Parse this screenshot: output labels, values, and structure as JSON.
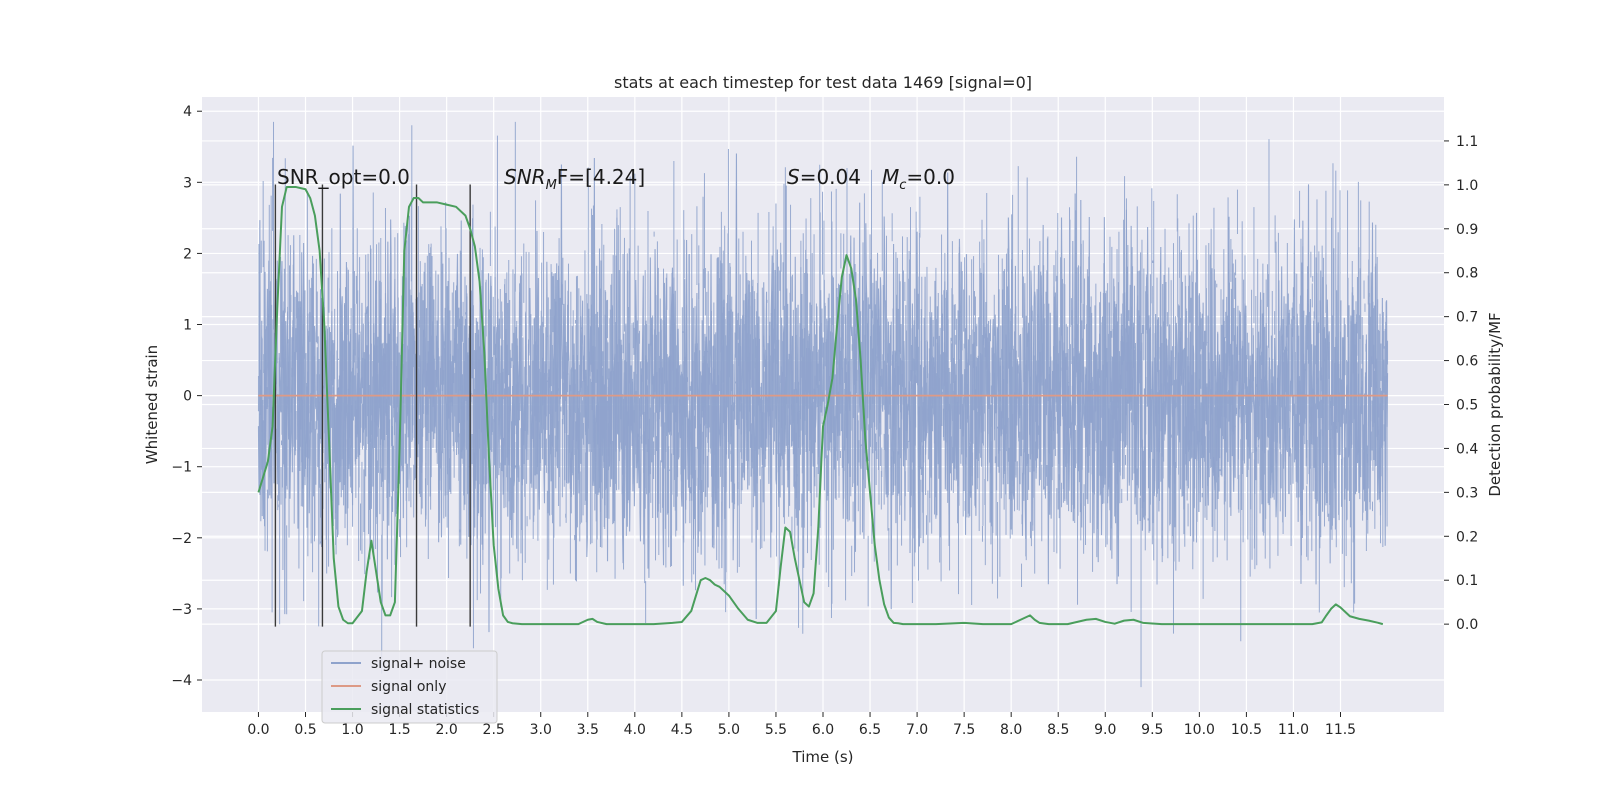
{
  "chart_data": {
    "type": "line",
    "title": "stats at each timestep for test data 1469 [signal=0]",
    "xlabel": "Time (s)",
    "ylabel": "Whitened strain",
    "ylabel_right": "Detection probability/MF",
    "xlim": [
      -0.6,
      12.6
    ],
    "ylim": [
      -4.45,
      4.2
    ],
    "ylim_right": [
      -0.2,
      1.2
    ],
    "xticks": [
      "0.0",
      "0.5",
      "1.0",
      "1.5",
      "2.0",
      "2.5",
      "3.0",
      "3.5",
      "4.0",
      "4.5",
      "5.0",
      "5.5",
      "6.0",
      "6.5",
      "7.0",
      "7.5",
      "8.0",
      "8.5",
      "9.0",
      "9.5",
      "10.0",
      "10.5",
      "11.0",
      "11.5"
    ],
    "yticks_left": [
      "−4",
      "−3",
      "−2",
      "−1",
      "0",
      "1",
      "2",
      "3",
      "4"
    ],
    "yticks_right": [
      "0.0",
      "0.1",
      "0.2",
      "0.3",
      "0.4",
      "0.5",
      "0.6",
      "0.7",
      "0.8",
      "0.9",
      "1.0",
      "1.1"
    ],
    "grid": true,
    "legend_position": "lower-left",
    "annotations": {
      "snr_opt": "SNR_opt=0.0",
      "snr_mf_symbol": "SNR",
      "snr_mf_sub": "M",
      "snr_mf_suffix": "F=[4.24]",
      "s_symbol": "S",
      "s_value": "=0.04",
      "mc_symbol": "M",
      "mc_sub": "c",
      "mc_value": "=0.0"
    },
    "series": [
      {
        "name": "signal+ noise",
        "color": "#8fa3cc",
        "style": "dense-noise",
        "x_range": [
          0.0,
          12.0
        ],
        "typical_range": [
          -1.9,
          1.9
        ],
        "extreme_range": [
          -4.1,
          3.85
        ]
      },
      {
        "name": "signal only",
        "color": "#dd9a86",
        "x": [
          0.0,
          12.0
        ],
        "y": [
          0,
          0
        ]
      },
      {
        "name": "signal statistics",
        "color": "#4a9e5c",
        "axis": "right",
        "x": [
          0.0,
          0.1,
          0.15,
          0.2,
          0.25,
          0.3,
          0.4,
          0.5,
          0.55,
          0.6,
          0.65,
          0.7,
          0.75,
          0.8,
          0.85,
          0.9,
          0.95,
          1.0,
          1.1,
          1.15,
          1.2,
          1.25,
          1.3,
          1.35,
          1.4,
          1.45,
          1.5,
          1.55,
          1.6,
          1.65,
          1.7,
          1.75,
          1.8,
          1.9,
          2.0,
          2.1,
          2.2,
          2.25,
          2.3,
          2.35,
          2.4,
          2.45,
          2.5,
          2.55,
          2.6,
          2.65,
          2.7,
          2.8,
          3.0,
          3.2,
          3.4,
          3.5,
          3.55,
          3.6,
          3.7,
          3.8,
          4.0,
          4.2,
          4.4,
          4.5,
          4.6,
          4.7,
          4.75,
          4.8,
          4.85,
          4.9,
          5.0,
          5.1,
          5.2,
          5.3,
          5.4,
          5.5,
          5.55,
          5.6,
          5.65,
          5.7,
          5.75,
          5.8,
          5.85,
          5.9,
          5.95,
          6.0,
          6.05,
          6.1,
          6.15,
          6.2,
          6.25,
          6.3,
          6.35,
          6.4,
          6.45,
          6.5,
          6.55,
          6.6,
          6.65,
          6.7,
          6.75,
          6.8,
          6.85,
          6.9,
          7.0,
          7.2,
          7.5,
          7.7,
          8.0,
          8.1,
          8.2,
          8.25,
          8.3,
          8.4,
          8.6,
          8.8,
          8.9,
          9.0,
          9.1,
          9.2,
          9.3,
          9.4,
          9.6,
          9.8,
          10.0,
          10.5,
          11.0,
          11.2,
          11.3,
          11.35,
          11.4,
          11.45,
          11.5,
          11.55,
          11.6,
          11.7,
          11.8,
          11.9,
          11.95
        ],
        "y": [
          0.3,
          0.37,
          0.45,
          0.72,
          0.95,
          0.995,
          0.995,
          0.99,
          0.97,
          0.93,
          0.85,
          0.68,
          0.42,
          0.15,
          0.04,
          0.01,
          0.002,
          0.002,
          0.03,
          0.12,
          0.19,
          0.12,
          0.05,
          0.02,
          0.02,
          0.05,
          0.4,
          0.85,
          0.95,
          0.97,
          0.97,
          0.96,
          0.96,
          0.96,
          0.955,
          0.95,
          0.93,
          0.9,
          0.86,
          0.78,
          0.62,
          0.38,
          0.18,
          0.08,
          0.02,
          0.005,
          0.002,
          0.0,
          0.0,
          0.0,
          0.0,
          0.01,
          0.012,
          0.005,
          0.0,
          0.0,
          0.0,
          0.0,
          0.003,
          0.005,
          0.03,
          0.1,
          0.105,
          0.1,
          0.09,
          0.085,
          0.065,
          0.035,
          0.01,
          0.003,
          0.003,
          0.03,
          0.13,
          0.22,
          0.21,
          0.15,
          0.1,
          0.05,
          0.04,
          0.07,
          0.22,
          0.45,
          0.5,
          0.56,
          0.68,
          0.79,
          0.84,
          0.81,
          0.74,
          0.6,
          0.42,
          0.3,
          0.18,
          0.1,
          0.045,
          0.015,
          0.003,
          0.002,
          0.0,
          0.0,
          0.0,
          0.0,
          0.003,
          0.0,
          0.0,
          0.01,
          0.02,
          0.01,
          0.003,
          0.0,
          0.0,
          0.01,
          0.012,
          0.005,
          0.001,
          0.008,
          0.01,
          0.003,
          0.0,
          0.0,
          0.0,
          0.0,
          0.0,
          0.0,
          0.004,
          0.02,
          0.035,
          0.045,
          0.038,
          0.028,
          0.018,
          0.012,
          0.008,
          0.003,
          0.0
        ]
      }
    ],
    "vertical_markers": {
      "color": "#3a3a3a",
      "x": [
        0.18,
        0.68,
        1.68,
        2.25
      ],
      "y_range": [
        -3.25,
        2.97
      ]
    }
  }
}
